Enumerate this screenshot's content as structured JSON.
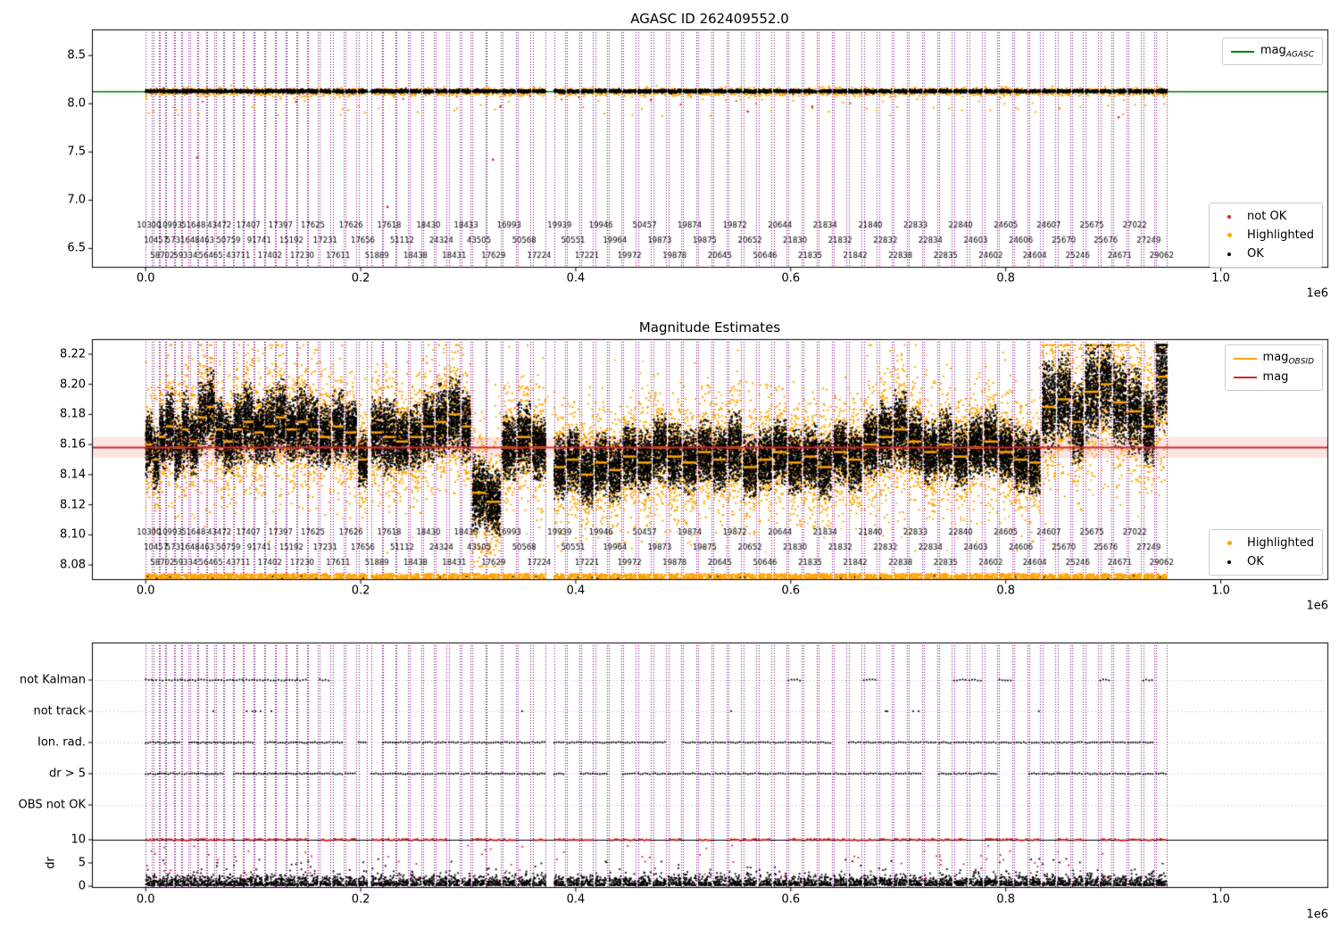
{
  "titles": {
    "top": "AGASC ID 262409552.0",
    "middle": "Magnitude Estimates"
  },
  "colors": {
    "mag_agasc_line": "#008000",
    "mag_line": "#d62728",
    "mag_band": "rgba(214,39,40,0.12)",
    "obsid_line": "#ffa500",
    "highlighted": "#ffa500",
    "ok": "#000000",
    "not_ok": "#d62728",
    "boundary_line": "#800080",
    "dr_clip": "#d62728",
    "grid": "#b8b8b8"
  },
  "legend": {
    "top_line": {
      "text": "mag",
      "sub": "AGASC"
    },
    "top_markers": [
      {
        "label": "not OK",
        "color": "#d62728"
      },
      {
        "label": "Highlighted",
        "color": "#ffa500"
      },
      {
        "label": "OK",
        "color": "#000000"
      }
    ],
    "mid_lines": [
      {
        "text": "mag",
        "sub": "OBSID",
        "color": "#ffa500"
      },
      {
        "text": "mag",
        "sub": "",
        "color": "#d62728"
      }
    ],
    "mid_markers": [
      {
        "label": "Highlighted",
        "color": "#ffa500"
      },
      {
        "label": "OK",
        "color": "#000000"
      }
    ]
  },
  "axes_text": {
    "top_yticks": [
      "8.5",
      "8.0",
      "7.5",
      "7.0",
      "6.5"
    ],
    "mid_yticks": [
      "8.22",
      "8.20",
      "8.18",
      "8.16",
      "8.14",
      "8.12",
      "8.10",
      "8.08"
    ],
    "xticks": [
      "0.0",
      "0.2",
      "0.4",
      "0.6",
      "0.8",
      "1.0"
    ],
    "x_offset": "1e6",
    "bottom_categories": [
      "not Kalman",
      "not track",
      "Ion. rad.",
      "dr > 5",
      "OBS not OK"
    ],
    "dr_ticks": [
      "10",
      "5",
      "0"
    ],
    "dr_label": "dr"
  },
  "chart_data": {
    "charts": [
      {
        "type": "scatter",
        "title": "AGASC ID 262409552.0",
        "xlim": [
          -50000,
          1100000
        ],
        "ylim": [
          6.3,
          8.77
        ],
        "x_unit_multiplier": "1e6",
        "yticks": [
          8.5,
          8.0,
          7.5,
          7.0,
          6.5
        ],
        "xticks": [
          0.0,
          0.2,
          0.4,
          0.6,
          0.8,
          1.0
        ],
        "mag_agasc_line": 8.125,
        "ok_band_center": 8.13,
        "ok_band_spread": 0.008,
        "highlighted_spread": 0.02,
        "legend_line": "mag_AGASC",
        "legend_markers": [
          "not OK",
          "Highlighted",
          "OK"
        ],
        "not_ok_points": [
          [
            48000,
            7.44
          ],
          [
            140000,
            8.02
          ],
          [
            225000,
            6.93
          ],
          [
            323000,
            7.42
          ],
          [
            330000,
            7.97
          ],
          [
            470000,
            8.04
          ],
          [
            560000,
            7.92
          ],
          [
            620000,
            7.97
          ],
          [
            905000,
            7.86
          ]
        ]
      },
      {
        "type": "scatter",
        "title": "Magnitude Estimates",
        "xlim": [
          -50000,
          1100000
        ],
        "ylim": [
          8.07,
          8.23
        ],
        "yticks": [
          8.22,
          8.2,
          8.18,
          8.16,
          8.14,
          8.12,
          8.1,
          8.08
        ],
        "mag_line": 8.158,
        "mag_band": [
          8.151,
          8.165
        ],
        "clip_low": 8.08,
        "legend_lines": [
          "mag_OBSID",
          "mag"
        ],
        "legend_markers": [
          "Highlighted",
          "OK"
        ]
      },
      {
        "type": "flags",
        "categories": [
          "not Kalman",
          "not track",
          "Ion. rad.",
          "dr > 5",
          "OBS not OK"
        ],
        "dr_ticks": [
          10,
          5,
          0
        ],
        "dr_label": "dr",
        "dr_clip_value": 10,
        "flag_probabilities": {
          "not_kalman_early": 0.9,
          "not_kalman_late": 0.15,
          "not_track": 0.07,
          "ion_rad": 0.92,
          "dr_gt_5": 0.85,
          "dr_clip10": 0.85,
          "obs_not_ok": 0.0
        }
      }
    ],
    "obsid_segments_fields": [
      "x_start",
      "x_stop",
      "mean_mag",
      "sigma",
      "obsid"
    ],
    "obsid_segments": [
      [
        0,
        6000,
        8.16,
        0.01,
        "10300"
      ],
      [
        7000,
        12000,
        8.15,
        0.01,
        "10457"
      ],
      [
        13000,
        18000,
        8.165,
        0.01,
        "58702"
      ],
      [
        19000,
        26000,
        8.172,
        0.012,
        "10993"
      ],
      [
        27000,
        33000,
        8.158,
        0.01,
        "57316"
      ],
      [
        34000,
        40000,
        8.17,
        0.012,
        "59334"
      ],
      [
        41000,
        48000,
        8.162,
        0.01,
        "51648"
      ],
      [
        49000,
        56000,
        8.178,
        0.012,
        "48463"
      ],
      [
        57000,
        64000,
        8.185,
        0.012,
        "56465"
      ],
      [
        65000,
        72000,
        8.17,
        0.01,
        "43472"
      ],
      [
        73000,
        81000,
        8.162,
        0.01,
        "50759"
      ],
      [
        82000,
        90000,
        8.17,
        0.011,
        "43711"
      ],
      [
        91000,
        100000,
        8.175,
        0.012,
        "17407"
      ],
      [
        101000,
        110000,
        8.168,
        0.01,
        "91741"
      ],
      [
        111000,
        120000,
        8.172,
        0.012,
        "17402"
      ],
      [
        121000,
        130000,
        8.178,
        0.012,
        "17397"
      ],
      [
        131000,
        140000,
        8.17,
        0.01,
        "15192"
      ],
      [
        141000,
        150000,
        8.175,
        0.012,
        "17230"
      ],
      [
        151000,
        160000,
        8.17,
        0.011,
        "17625"
      ],
      [
        162000,
        172000,
        8.165,
        0.01,
        "17231"
      ],
      [
        174000,
        184000,
        8.172,
        0.011,
        "17611"
      ],
      [
        186000,
        196000,
        8.168,
        0.01,
        "17626"
      ],
      [
        198000,
        206000,
        8.15,
        0.009,
        "17656"
      ],
      [
        210000,
        220000,
        8.168,
        0.011,
        "51889"
      ],
      [
        221000,
        232000,
        8.165,
        0.012,
        "17618"
      ],
      [
        233000,
        244000,
        8.162,
        0.01,
        "51112"
      ],
      [
        246000,
        256000,
        8.165,
        0.01,
        "18438"
      ],
      [
        258000,
        268000,
        8.172,
        0.011,
        "18430"
      ],
      [
        270000,
        280000,
        8.175,
        0.012,
        "24324"
      ],
      [
        282000,
        292000,
        8.18,
        0.012,
        "18431"
      ],
      [
        294000,
        302000,
        8.172,
        0.011,
        "18433"
      ],
      [
        304000,
        316000,
        8.128,
        0.012,
        "43505"
      ],
      [
        317000,
        330000,
        8.122,
        0.011,
        "17629"
      ],
      [
        332000,
        344000,
        8.158,
        0.01,
        "16993"
      ],
      [
        346000,
        358000,
        8.165,
        0.011,
        "50568"
      ],
      [
        360000,
        372000,
        8.158,
        0.01,
        "17224"
      ],
      [
        380000,
        390000,
        8.145,
        0.01,
        "19939"
      ],
      [
        392000,
        403000,
        8.15,
        0.01,
        "50551"
      ],
      [
        405000,
        416000,
        8.14,
        0.01,
        "17221"
      ],
      [
        418000,
        429000,
        8.148,
        0.01,
        "19946"
      ],
      [
        431000,
        442000,
        8.143,
        0.01,
        "19964"
      ],
      [
        444000,
        456000,
        8.152,
        0.01,
        "19972"
      ],
      [
        458000,
        470000,
        8.148,
        0.01,
        "50457"
      ],
      [
        472000,
        484000,
        8.158,
        0.011,
        "19873"
      ],
      [
        486000,
        498000,
        8.152,
        0.01,
        "19878"
      ],
      [
        500000,
        512000,
        8.148,
        0.01,
        "19874"
      ],
      [
        514000,
        526000,
        8.155,
        0.01,
        "19875"
      ],
      [
        528000,
        540000,
        8.15,
        0.01,
        "20645"
      ],
      [
        542000,
        554000,
        8.158,
        0.011,
        "19872"
      ],
      [
        556000,
        568000,
        8.145,
        0.01,
        "20652"
      ],
      [
        570000,
        582000,
        8.15,
        0.01,
        "50646"
      ],
      [
        584000,
        596000,
        8.155,
        0.01,
        "20644"
      ],
      [
        598000,
        610000,
        8.148,
        0.01,
        "21830"
      ],
      [
        612000,
        624000,
        8.152,
        0.01,
        "21835"
      ],
      [
        626000,
        638000,
        8.145,
        0.01,
        "21834"
      ],
      [
        640000,
        652000,
        8.155,
        0.01,
        "21832"
      ],
      [
        654000,
        666000,
        8.15,
        0.01,
        "21842"
      ],
      [
        668000,
        680000,
        8.16,
        0.011,
        "21840"
      ],
      [
        682000,
        694000,
        8.165,
        0.011,
        "22832"
      ],
      [
        696000,
        708000,
        8.17,
        0.012,
        "22838"
      ],
      [
        710000,
        722000,
        8.162,
        0.01,
        "22833"
      ],
      [
        724000,
        736000,
        8.155,
        0.01,
        "22834"
      ],
      [
        738000,
        750000,
        8.16,
        0.011,
        "22835"
      ],
      [
        752000,
        764000,
        8.152,
        0.01,
        "22840"
      ],
      [
        766000,
        778000,
        8.158,
        0.01,
        "24603"
      ],
      [
        780000,
        792000,
        8.162,
        0.011,
        "24602"
      ],
      [
        794000,
        806000,
        8.155,
        0.01,
        "24605"
      ],
      [
        808000,
        820000,
        8.15,
        0.01,
        "24606"
      ],
      [
        822000,
        832000,
        8.148,
        0.01,
        "24604"
      ],
      [
        834000,
        846000,
        8.185,
        0.014,
        "24607"
      ],
      [
        848000,
        860000,
        8.19,
        0.014,
        "25670"
      ],
      [
        862000,
        872000,
        8.175,
        0.013,
        "25246"
      ],
      [
        874000,
        886000,
        8.195,
        0.015,
        "25675"
      ],
      [
        888000,
        898000,
        8.2,
        0.014,
        "25676"
      ],
      [
        900000,
        912000,
        8.188,
        0.014,
        "24671"
      ],
      [
        914000,
        926000,
        8.182,
        0.013,
        "27022"
      ],
      [
        928000,
        938000,
        8.172,
        0.012,
        "27249"
      ],
      [
        940000,
        950000,
        8.205,
        0.018,
        "29062"
      ]
    ]
  }
}
